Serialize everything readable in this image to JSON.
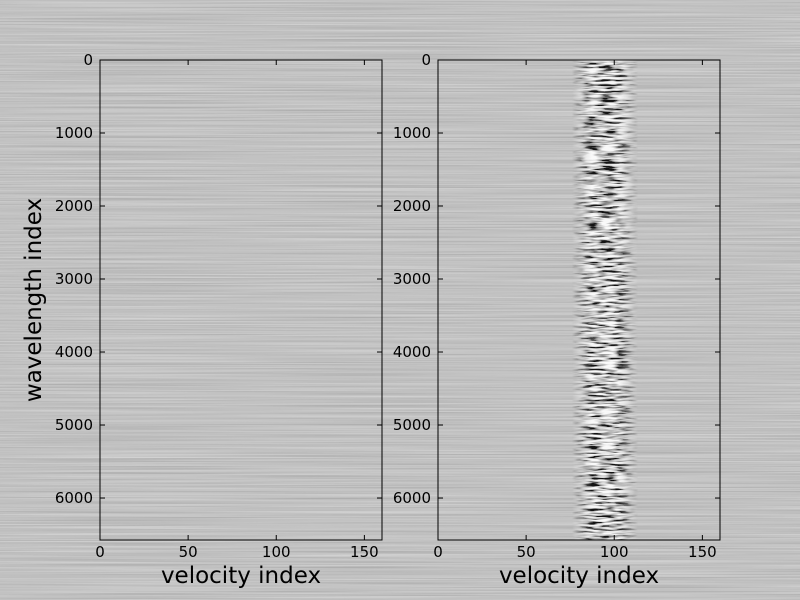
{
  "chart_data": [
    {
      "type": "heatmap",
      "colormap": "gray",
      "xlabel": "velocity index",
      "ylabel": "wavelength index",
      "xlim": [
        0,
        160
      ],
      "ylim": [
        6575,
        0
      ],
      "xticks": [
        0,
        50,
        100,
        150
      ],
      "yticks": [
        0,
        1000,
        2000,
        3000,
        4000,
        5000,
        6000
      ]
    },
    {
      "type": "heatmap",
      "colormap": "gray",
      "xlabel": "velocity index",
      "xlim": [
        0,
        160
      ],
      "ylim": [
        6575,
        0
      ],
      "xticks": [
        0,
        50,
        100,
        150
      ],
      "yticks": [
        0,
        1000,
        2000,
        3000,
        4000,
        5000,
        6000
      ]
    }
  ]
}
